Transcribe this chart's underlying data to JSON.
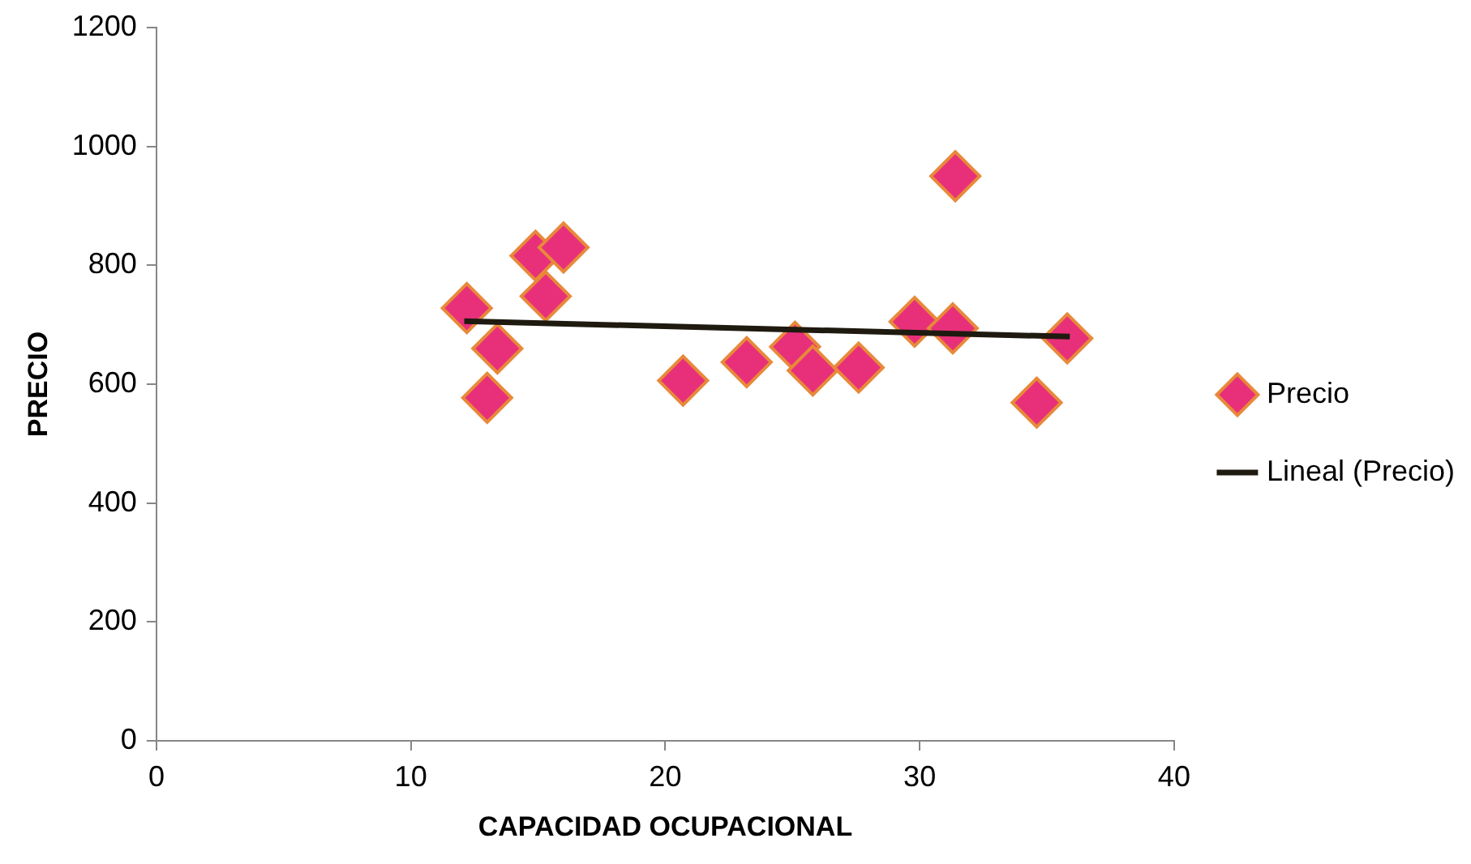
{
  "chart_data": {
    "type": "scatter",
    "xlabel": "CAPACIDAD OCUPACIONAL",
    "ylabel": "PRECIO",
    "xlim": [
      0,
      40
    ],
    "xticks": [
      0,
      10,
      20,
      30,
      40
    ],
    "ylim": [
      0,
      1200
    ],
    "yticks": [
      0,
      200,
      400,
      600,
      800,
      1000,
      1200
    ],
    "grid": false,
    "legend": "right",
    "marker": "diamond",
    "series": [
      {
        "name": "Precio",
        "color": "#e8307a",
        "x": [
          12.2,
          13.4,
          13.0,
          14.9,
          16.0,
          15.3,
          20.7,
          23.2,
          25.1,
          25.8,
          27.6,
          29.8,
          31.3,
          31.4,
          34.6,
          35.8
        ],
        "values": [
          728,
          660,
          577,
          816,
          830,
          748,
          606,
          637,
          663,
          623,
          628,
          705,
          694,
          950,
          569,
          677
        ]
      },
      {
        "name": "Lineal (Precio)",
        "type": "line",
        "color": "#1f1a10",
        "line_style": "solid",
        "marker": "none",
        "x": [
          12.1,
          35.9
        ],
        "values": [
          706,
          680
        ]
      }
    ]
  }
}
